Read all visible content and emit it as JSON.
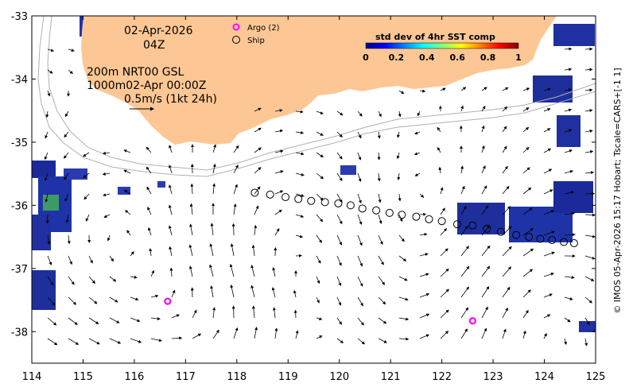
{
  "map": {
    "date": "02-Apr-2026",
    "hour": "04Z",
    "depth_lines": [
      "200m  NRT00 GSL",
      "1000m02-Apr 00:00Z"
    ],
    "scale_label": "0.5m/s (1kt 24h)",
    "legend": {
      "argo": "Argo (2)",
      "ship": "Ship"
    },
    "colorbar": {
      "title": "std dev of 4hr SST comp",
      "ticks": [
        "0",
        "0.2",
        "0.4",
        "0.6",
        "0.8",
        "1"
      ],
      "colors": [
        "#00008f",
        "#0000ff",
        "#0080ff",
        "#00ffff",
        "#80ff80",
        "#ffff00",
        "#ff8000",
        "#ff0000",
        "#800000"
      ]
    },
    "credit": "© IMOS 05-Apr-2026 15:17 Hobart; Tscale=CARS+[-1 1]",
    "x_ticks": [
      "114",
      "115",
      "116",
      "117",
      "118",
      "119",
      "120",
      "121",
      "122",
      "123",
      "124",
      "125"
    ],
    "y_ticks": [
      "-33",
      "-34",
      "-35",
      "-36",
      "-37",
      "-38"
    ],
    "lon_range": [
      114,
      125
    ],
    "lat_range": [
      -38.5,
      -33
    ],
    "land_color": "#fcc794",
    "argo_color": "#ff00ff",
    "argo_floats": [
      {
        "lon": 116.65,
        "lat": -37.52
      },
      {
        "lon": 122.6,
        "lat": -37.83
      }
    ],
    "ship_track": [
      {
        "lon": 118.35,
        "lat": -35.8
      },
      {
        "lon": 118.65,
        "lat": -35.83
      },
      {
        "lon": 118.95,
        "lat": -35.87
      },
      {
        "lon": 119.2,
        "lat": -35.9
      },
      {
        "lon": 119.45,
        "lat": -35.93
      },
      {
        "lon": 119.72,
        "lat": -35.95
      },
      {
        "lon": 119.98,
        "lat": -35.97
      },
      {
        "lon": 120.22,
        "lat": -36.0
      },
      {
        "lon": 120.45,
        "lat": -36.05
      },
      {
        "lon": 120.72,
        "lat": -36.08
      },
      {
        "lon": 120.98,
        "lat": -36.12
      },
      {
        "lon": 121.22,
        "lat": -36.15
      },
      {
        "lon": 121.5,
        "lat": -36.18
      },
      {
        "lon": 121.75,
        "lat": -36.22
      },
      {
        "lon": 122.0,
        "lat": -36.25
      },
      {
        "lon": 122.3,
        "lat": -36.3
      },
      {
        "lon": 122.6,
        "lat": -36.32
      },
      {
        "lon": 122.88,
        "lat": -36.37
      },
      {
        "lon": 123.15,
        "lat": -36.42
      },
      {
        "lon": 123.45,
        "lat": -36.47
      },
      {
        "lon": 123.7,
        "lat": -36.5
      },
      {
        "lon": 123.92,
        "lat": -36.53
      },
      {
        "lon": 124.15,
        "lat": -36.55
      },
      {
        "lon": 124.38,
        "lat": -36.58
      },
      {
        "lon": 124.58,
        "lat": -36.6
      }
    ]
  }
}
